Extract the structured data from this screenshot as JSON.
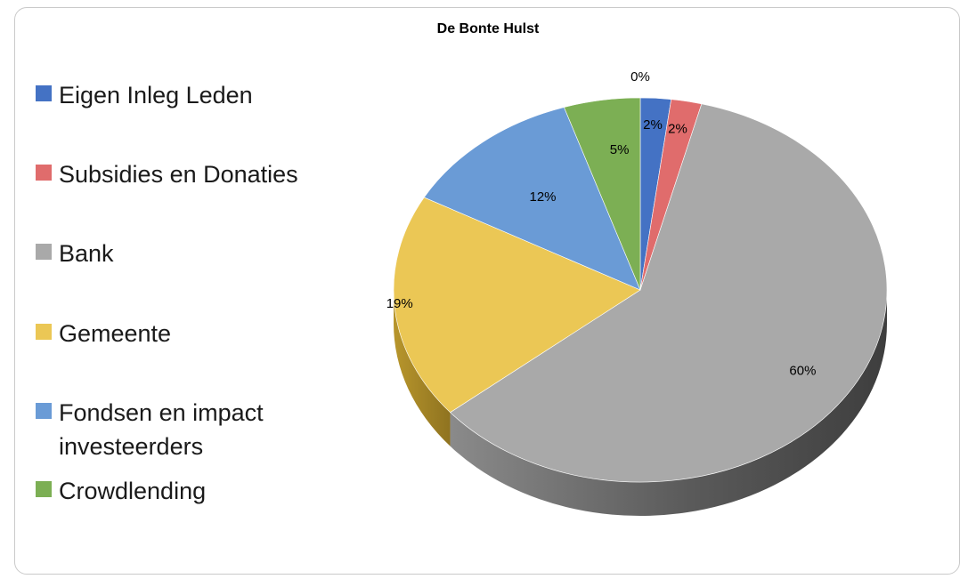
{
  "chart_data": {
    "type": "pie",
    "title": "De Bonte Hulst",
    "legend_position": "left",
    "categories": [
      "Eigen Inleg Leden",
      "Subsidies en Donaties",
      "Bank",
      "Gemeente",
      "Fondsen en impact investeerders",
      "Crowdlending"
    ],
    "values": [
      2,
      2,
      60,
      19,
      12,
      5
    ],
    "data_labels": [
      "2%",
      "2%",
      "60%",
      "19%",
      "12%",
      "5%"
    ],
    "extra_label": "0%",
    "colors": [
      "#4472C4",
      "#E06C6C",
      "#A9A9A9",
      "#EBC755",
      "#6A9BD6",
      "#7CAF54"
    ]
  }
}
